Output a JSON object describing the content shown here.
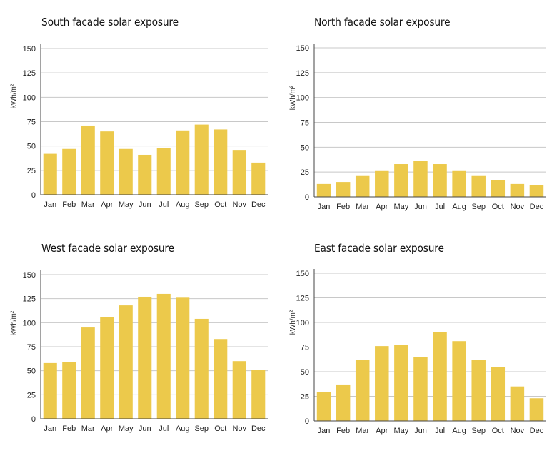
{
  "style": {
    "bar_color": "#ECC94B",
    "grid_color": "#C8C8C8",
    "axis_color": "#444444"
  },
  "chart_data": [
    {
      "type": "bar",
      "title": "South facade solar exposure",
      "ylabel": "kWh/m²",
      "xlabel": "",
      "categories": [
        "Jan",
        "Feb",
        "Mar",
        "Apr",
        "May",
        "Jun",
        "Jul",
        "Aug",
        "Sep",
        "Oct",
        "Nov",
        "Dec"
      ],
      "values": [
        42,
        47,
        71,
        65,
        47,
        41,
        48,
        66,
        72,
        67,
        46,
        33
      ],
      "ylim": [
        0,
        150
      ],
      "yticks": [
        0,
        25,
        50,
        75,
        100,
        125,
        150
      ],
      "grid": true
    },
    {
      "type": "bar",
      "title": "North facade solar exposure",
      "ylabel": "kWh/m²",
      "xlabel": "",
      "categories": [
        "Jan",
        "Feb",
        "Mar",
        "Apr",
        "May",
        "Jun",
        "Jul",
        "Aug",
        "Sep",
        "Oct",
        "Nov",
        "Dec"
      ],
      "values": [
        13,
        15,
        21,
        26,
        33,
        36,
        33,
        26,
        21,
        17,
        13,
        12
      ],
      "ylim": [
        0,
        150
      ],
      "yticks": [
        0,
        25,
        50,
        75,
        100,
        125,
        150
      ],
      "grid": true
    },
    {
      "type": "bar",
      "title": "West facade solar exposure",
      "ylabel": "kWh/m²",
      "xlabel": "",
      "categories": [
        "Jan",
        "Feb",
        "Mar",
        "Apr",
        "May",
        "Jun",
        "Jul",
        "Aug",
        "Sep",
        "Oct",
        "Nov",
        "Dec"
      ],
      "values": [
        58,
        59,
        95,
        106,
        118,
        127,
        130,
        126,
        104,
        83,
        60,
        51
      ],
      "ylim": [
        0,
        150
      ],
      "yticks": [
        0,
        25,
        50,
        75,
        100,
        125,
        150
      ],
      "grid": true
    },
    {
      "type": "bar",
      "title": "East facade solar exposure",
      "ylabel": "kWh/m²",
      "xlabel": "",
      "categories": [
        "Jan",
        "Feb",
        "Mar",
        "Apr",
        "May",
        "Jun",
        "Jul",
        "Aug",
        "Sep",
        "Oct",
        "Nov",
        "Dec"
      ],
      "values": [
        29,
        37,
        62,
        76,
        77,
        65,
        90,
        81,
        62,
        55,
        35,
        23
      ],
      "ylim": [
        0,
        150
      ],
      "yticks": [
        0,
        25,
        50,
        75,
        100,
        125,
        150
      ],
      "grid": true
    }
  ]
}
